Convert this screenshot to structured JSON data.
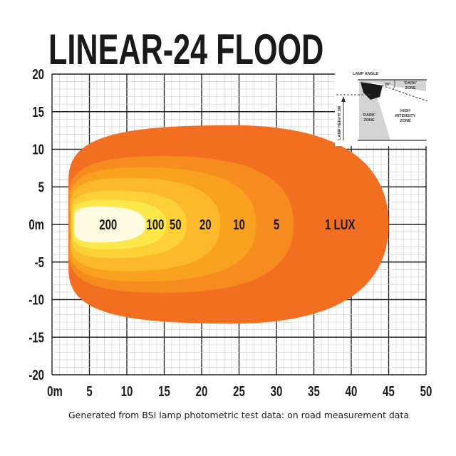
{
  "chart_data": {
    "type": "isolux contour",
    "title": "LINEAR-24 FLOOD",
    "footnote": "Generated from BSI lamp photometric test data: on road measurement data",
    "xlim": [
      0,
      50
    ],
    "ylim": [
      -20,
      20
    ],
    "x_ticks": [
      "0m",
      "5",
      "10",
      "15",
      "20",
      "25",
      "30",
      "35",
      "40",
      "45",
      "50"
    ],
    "y_ticks": [
      "20",
      "15",
      "10",
      "5",
      "0m",
      "-5",
      "-10",
      "-15",
      "-20"
    ],
    "grid": {
      "major_step": 5,
      "minor_step": 1
    },
    "contours": [
      {
        "label": "1 LUX",
        "lux": 1,
        "x_start": 2.2,
        "x_end": 45.0,
        "half_width": 13.2,
        "peak_x": 24,
        "color": "#f26f21"
      },
      {
        "label": "5",
        "lux": 5,
        "x_start": 2.3,
        "x_end": 32.3,
        "half_width": 9.1,
        "peak_x": 15,
        "color": "#f68b1f"
      },
      {
        "label": "10",
        "lux": 10,
        "x_start": 2.4,
        "x_end": 27.3,
        "half_width": 7.6,
        "peak_x": 12,
        "color": "#f9a21f"
      },
      {
        "label": "20",
        "lux": 20,
        "x_start": 2.5,
        "x_end": 22.5,
        "half_width": 6.2,
        "peak_x": 10,
        "color": "#fbb92b"
      },
      {
        "label": "50",
        "lux": 50,
        "x_start": 2.6,
        "x_end": 18.0,
        "half_width": 4.5,
        "peak_x": 8,
        "color": "#fdd036"
      },
      {
        "label": "100",
        "lux": 100,
        "x_start": 2.8,
        "x_end": 15.3,
        "half_width": 3.3,
        "peak_x": 7,
        "color": "#fde84c"
      },
      {
        "label": "200",
        "lux": 200,
        "x_start": 3.0,
        "x_end": 12.5,
        "half_width": 2.4,
        "peak_x": 6,
        "color": "#fffbe0"
      }
    ],
    "contour_label_x": {
      "1 LUX": 38.5,
      "5": 30,
      "10": 25,
      "20": 20.5,
      "50": 16.5,
      "100": 13.8,
      "200": 7.5
    }
  },
  "inset": {
    "lamp_angle": "LAMP ANGLE",
    "angle": "20°",
    "dark_zone_top": [
      "'DARK'",
      "ZONE"
    ],
    "dark_zone_left": [
      "'DARK'",
      "ZONE"
    ],
    "high_intensity": [
      "HIGH",
      "INTENSITY",
      "ZONE"
    ],
    "lamp_height": "LAMP HEIGHT 3M"
  }
}
